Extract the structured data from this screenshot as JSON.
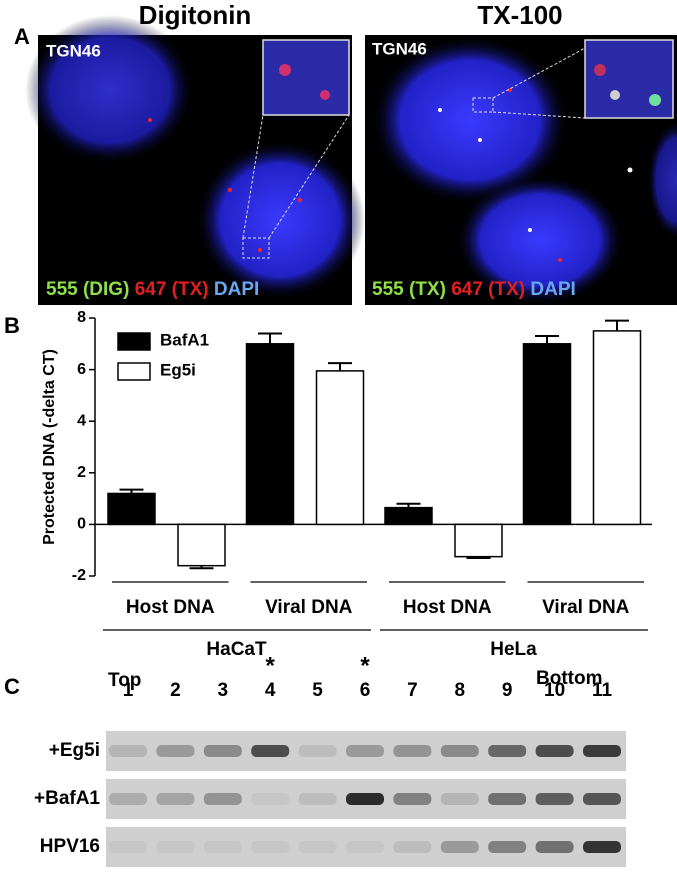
{
  "panel_a": {
    "label": "A",
    "images": [
      {
        "title": "Digitonin",
        "marker": "TGN46",
        "legend": [
          "555 (DIG)",
          "647 (TX)",
          "DAPI"
        ]
      },
      {
        "title": "TX-100",
        "marker": "TGN46",
        "legend": [
          "555 (TX)",
          "647 (TX)",
          "DAPI"
        ]
      }
    ]
  },
  "chart_data": {
    "type": "bar",
    "panel_label": "B",
    "y_label": "Protected DNA (-delta CT)",
    "categories": [
      "Host DNA",
      "Viral DNA",
      "Host DNA",
      "Viral DNA"
    ],
    "group_labels": [
      "HaCaT",
      "HeLa"
    ],
    "series": [
      {
        "name": "BafA1",
        "color": "#000000",
        "values": [
          1.2,
          7.0,
          0.65,
          7.0
        ],
        "errors": [
          0.15,
          0.4,
          0.15,
          0.3
        ]
      },
      {
        "name": "Eg5i",
        "color": "#ffffff",
        "values": [
          -1.6,
          5.95,
          -1.25,
          7.5
        ],
        "errors": [
          0.1,
          0.3,
          0.05,
          0.4
        ]
      }
    ],
    "ylim": [
      -2,
      8
    ],
    "yticks": [
      -2,
      0,
      2,
      4,
      6,
      8
    ]
  },
  "panel_c": {
    "label": "C",
    "top": "Top",
    "bottom": "Bottom",
    "lanes": [
      "1",
      "2",
      "3",
      "4",
      "5",
      "6",
      "7",
      "8",
      "9",
      "10",
      "11"
    ],
    "asterisks": [
      {
        "lane": "4",
        "mark": "*"
      },
      {
        "lane": "6",
        "mark": "*"
      }
    ],
    "rows": [
      "+Eg5i",
      "+BafA1",
      "HPV16"
    ]
  }
}
